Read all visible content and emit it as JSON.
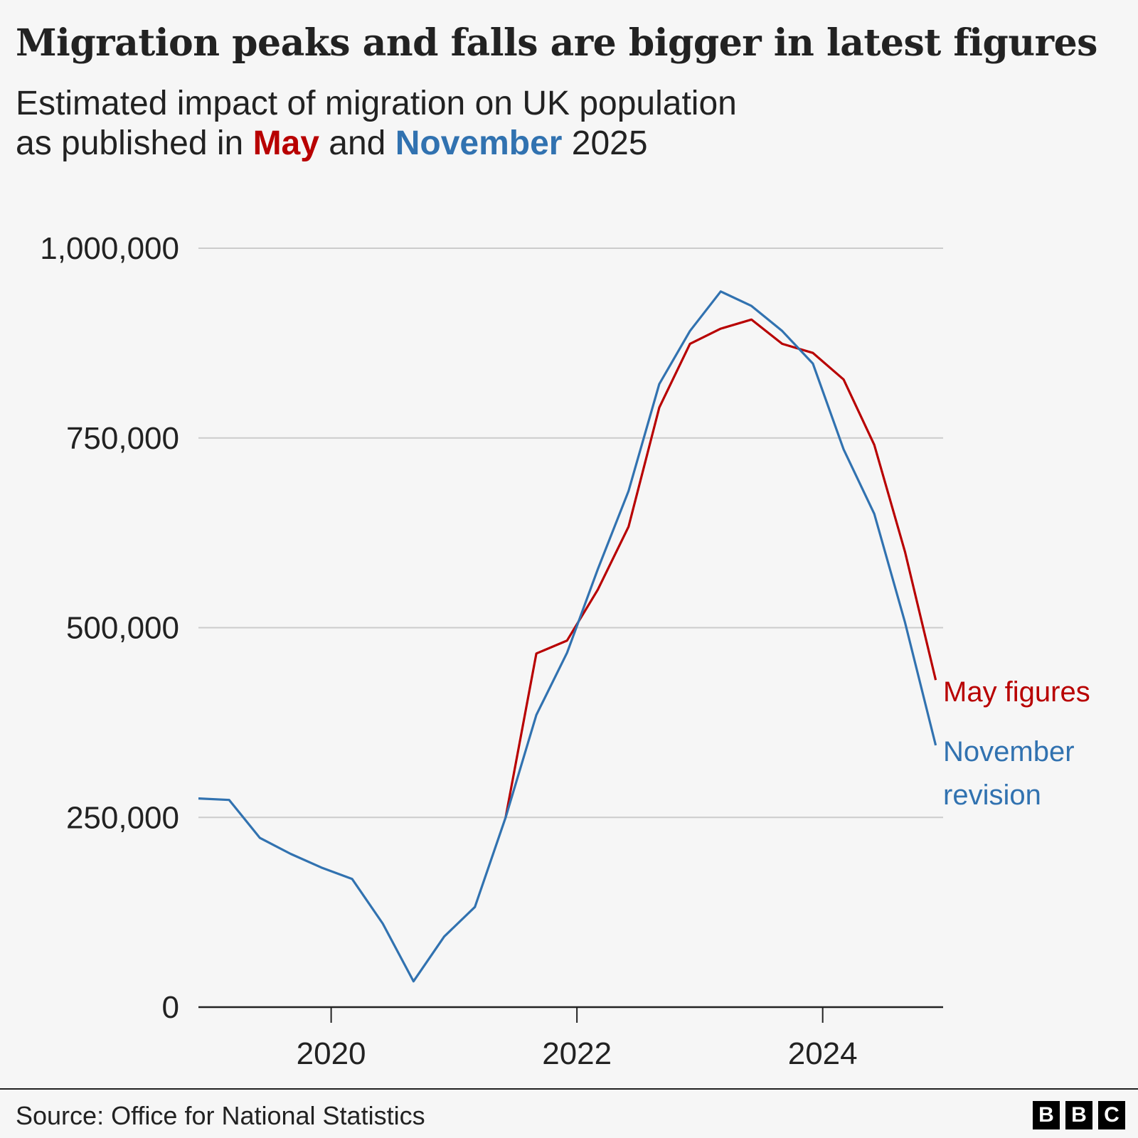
{
  "title": "Migration peaks and falls are bigger in latest figures",
  "subtitle": {
    "line1": "Estimated impact of migration on UK population",
    "line2_prefix": "as published in ",
    "may": "May",
    "and": " and ",
    "november": "November",
    "suffix": " 2025"
  },
  "source": "Source: Office for National Statistics",
  "logo": [
    "B",
    "B",
    "C"
  ],
  "colors": {
    "may": "#b80000",
    "november": "#3172b0",
    "grid": "#cccccc",
    "axis": "#222222"
  },
  "chart_data": {
    "type": "line",
    "xlim": [
      2018.92,
      2024.98
    ],
    "ylim": [
      0,
      1000000
    ],
    "y_ticks": [
      0,
      250000,
      500000,
      750000,
      1000000
    ],
    "y_tick_labels": [
      "0",
      "250,000",
      "500,000",
      "750,000",
      "1,000,000"
    ],
    "x_ticks": [
      2020,
      2022,
      2024
    ],
    "x_tick_labels": [
      "2020",
      "2022",
      "2024"
    ],
    "grid": true,
    "series": [
      {
        "name": "May figures",
        "label_lines": [
          "May figures"
        ],
        "color": "#b80000",
        "x": [
          2021.42,
          2021.67,
          2021.92,
          2022.17,
          2022.42,
          2022.67,
          2022.92,
          2023.17,
          2023.42,
          2023.67,
          2023.92,
          2024.17,
          2024.42,
          2024.67,
          2024.92
        ],
        "y": [
          250000,
          466000,
          483000,
          550000,
          633000,
          790000,
          874000,
          894000,
          906000,
          874000,
          862000,
          827000,
          741000,
          600000,
          431000
        ]
      },
      {
        "name": "November revision",
        "label_lines": [
          "November",
          "revision"
        ],
        "color": "#3172b0",
        "x": [
          2018.92,
          2019.17,
          2019.42,
          2019.67,
          2019.92,
          2020.17,
          2020.42,
          2020.67,
          2020.92,
          2021.17,
          2021.42,
          2021.67,
          2021.92,
          2022.17,
          2022.42,
          2022.67,
          2022.92,
          2023.17,
          2023.42,
          2023.67,
          2023.92,
          2024.17,
          2024.42,
          2024.67,
          2024.92
        ],
        "y": [
          275000,
          273000,
          223000,
          202000,
          184000,
          169000,
          110000,
          34000,
          93000,
          132000,
          250000,
          385000,
          467000,
          577000,
          680000,
          821000,
          891000,
          943000,
          924000,
          891000,
          848000,
          735000,
          650000,
          507000,
          345000
        ]
      }
    ]
  }
}
